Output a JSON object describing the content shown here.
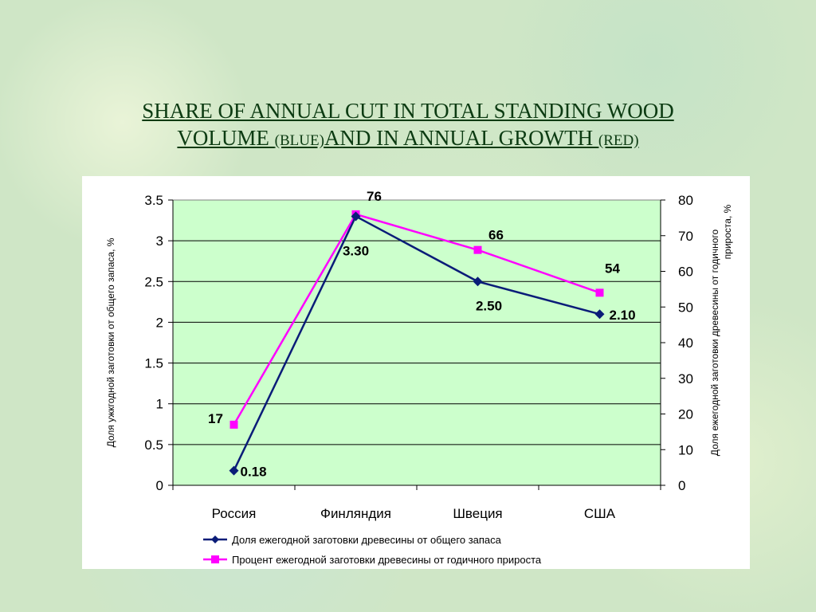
{
  "title": {
    "line1": "SHARE OF ANNUAL CUT IN TOTAL STANDING WOOD",
    "line2a": "VOLUME ",
    "line2b": "(BLUE)",
    "line2c": "AND IN ANNUAL GROWTH ",
    "line2d": "(RED)"
  },
  "colors": {
    "series1": "#0a1c78",
    "series2": "#ff00ff",
    "plot_bg": "#ccffcc",
    "title": "#0c3b12"
  },
  "chart_data": {
    "type": "line",
    "categories": [
      "Россия",
      "Финляндия",
      "Швеция",
      "США"
    ],
    "series": [
      {
        "name": "Доля ежегодной заготовки древесины от общего запаса",
        "axis": "left",
        "values": [
          0.18,
          3.3,
          2.5,
          2.1
        ],
        "labels": [
          "0.18",
          "3.30",
          "2.50",
          "2.10"
        ]
      },
      {
        "name": "Процент ежегодной заготовки древесины от годичного прироста",
        "axis": "right",
        "values": [
          17,
          76,
          66,
          54
        ],
        "labels": [
          "17",
          "76",
          "66",
          "54"
        ]
      }
    ],
    "y_left": {
      "label": "Доля ужкгодной заготовки от общего запаса, %",
      "min": 0,
      "max": 3.5,
      "ticks": [
        "0",
        "0.5",
        "1",
        "1.5",
        "2",
        "2.5",
        "3",
        "3.5"
      ]
    },
    "y_right": {
      "label_line1": "Доля ежегодной заготовки древесины от годичного",
      "label_line2": "прироста, %",
      "min": 0,
      "max": 80,
      "ticks": [
        "0",
        "10",
        "20",
        "30",
        "40",
        "50",
        "60",
        "70",
        "80"
      ]
    },
    "grid": true,
    "legend_position": "bottom"
  }
}
